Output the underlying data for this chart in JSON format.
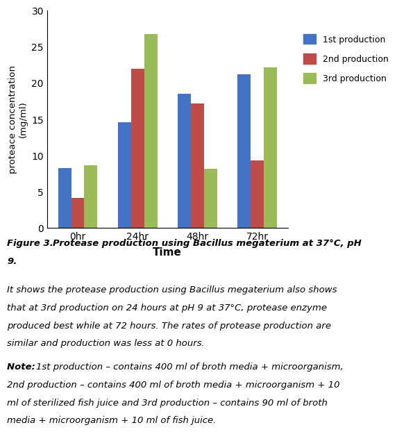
{
  "categories": [
    "0hr",
    "24hr",
    "48hr",
    "72hr"
  ],
  "series": {
    "1st production": [
      8.3,
      14.6,
      18.5,
      21.2
    ],
    "2nd production": [
      4.2,
      22.0,
      17.2,
      9.3
    ],
    "3rd production": [
      8.7,
      26.8,
      8.2,
      22.2
    ]
  },
  "colors": {
    "1st production": "#4472C4",
    "2nd production": "#BE4B48",
    "3rd production": "#9BBB59"
  },
  "ylabel": "proteace concentration\n(mg/ml)",
  "xlabel": "Time",
  "ylim": [
    0,
    30
  ],
  "yticks": [
    0,
    5,
    10,
    15,
    20,
    25,
    30
  ],
  "bar_width": 0.22,
  "background_color": "#FFFFFF",
  "fig3_bold": "Figure 3. ",
  "fig3_rest": "Protease production using Bacillus megaterium at 37°C, pH",
  "fig3_line2": "9.",
  "caption_lines": [
    "It shows the protease production using Bacillus megaterium also shows",
    "that at 3rd production on 24 hours at pH 9 at 37°C, protease enzyme",
    "produced best while at 72 hours. The rates of protease production are",
    "similar and production was less at 0 hours."
  ],
  "note_bold": "Note: ",
  "note_lines": [
    "1st production – contains 400 ml of broth media + microorganism,",
    "2nd production – contains 400 ml of broth media + microorganism + 10",
    "ml of sterilized fish juice and 3rd production – contains 90 ml of broth",
    "media + microorganism + 10 ml of fish juice."
  ]
}
